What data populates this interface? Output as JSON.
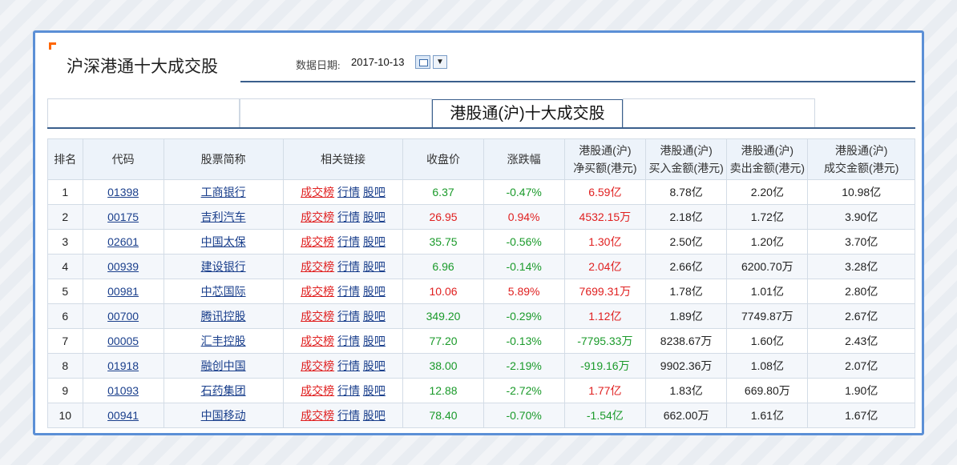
{
  "panel": {
    "title": "沪深港通十大成交股",
    "date_label": "数据日期:",
    "date_value": "2017-10-13"
  },
  "tabs": {
    "active_label": "港股通(沪)十大成交股"
  },
  "table": {
    "headers": [
      "排名",
      "代码",
      "股票简称",
      "相关链接",
      "收盘价",
      "涨跌幅",
      "港股通(沪) 净买额(港元)",
      "港股通(沪) 买入金额(港元)",
      "港股通(沪) 卖出金额(港元)",
      "港股通(沪) 成交金额(港元)"
    ],
    "link_labels": [
      "成交榜",
      "行情",
      "股吧"
    ],
    "rows": [
      {
        "rank": "1",
        "code": "01398",
        "name": "工商银行",
        "close": "6.37",
        "change": "-0.47%",
        "net": "6.59亿",
        "buy": "8.78亿",
        "sell": "2.20亿",
        "total": "10.98亿",
        "close_color": "green",
        "change_color": "green",
        "net_color": "red"
      },
      {
        "rank": "2",
        "code": "00175",
        "name": "吉利汽车",
        "close": "26.95",
        "change": "0.94%",
        "net": "4532.15万",
        "buy": "2.18亿",
        "sell": "1.72亿",
        "total": "3.90亿",
        "close_color": "red",
        "change_color": "red",
        "net_color": "red"
      },
      {
        "rank": "3",
        "code": "02601",
        "name": "中国太保",
        "close": "35.75",
        "change": "-0.56%",
        "net": "1.30亿",
        "buy": "2.50亿",
        "sell": "1.20亿",
        "total": "3.70亿",
        "close_color": "green",
        "change_color": "green",
        "net_color": "red"
      },
      {
        "rank": "4",
        "code": "00939",
        "name": "建设银行",
        "close": "6.96",
        "change": "-0.14%",
        "net": "2.04亿",
        "buy": "2.66亿",
        "sell": "6200.70万",
        "total": "3.28亿",
        "close_color": "green",
        "change_color": "green",
        "net_color": "red"
      },
      {
        "rank": "5",
        "code": "00981",
        "name": "中芯国际",
        "close": "10.06",
        "change": "5.89%",
        "net": "7699.31万",
        "buy": "1.78亿",
        "sell": "1.01亿",
        "total": "2.80亿",
        "close_color": "red",
        "change_color": "red",
        "net_color": "red"
      },
      {
        "rank": "6",
        "code": "00700",
        "name": "腾讯控股",
        "close": "349.20",
        "change": "-0.29%",
        "net": "1.12亿",
        "buy": "1.89亿",
        "sell": "7749.87万",
        "total": "2.67亿",
        "close_color": "green",
        "change_color": "green",
        "net_color": "red"
      },
      {
        "rank": "7",
        "code": "00005",
        "name": "汇丰控股",
        "close": "77.20",
        "change": "-0.13%",
        "net": "-7795.33万",
        "buy": "8238.67万",
        "sell": "1.60亿",
        "total": "2.43亿",
        "close_color": "green",
        "change_color": "green",
        "net_color": "green"
      },
      {
        "rank": "8",
        "code": "01918",
        "name": "融创中国",
        "close": "38.00",
        "change": "-2.19%",
        "net": "-919.16万",
        "buy": "9902.36万",
        "sell": "1.08亿",
        "total": "2.07亿",
        "close_color": "green",
        "change_color": "green",
        "net_color": "green"
      },
      {
        "rank": "9",
        "code": "01093",
        "name": "石药集团",
        "close": "12.88",
        "change": "-2.72%",
        "net": "1.77亿",
        "buy": "1.83亿",
        "sell": "669.80万",
        "total": "1.90亿",
        "close_color": "green",
        "change_color": "green",
        "net_color": "red"
      },
      {
        "rank": "10",
        "code": "00941",
        "name": "中国移动",
        "close": "78.40",
        "change": "-0.70%",
        "net": "-1.54亿",
        "buy": "662.00万",
        "sell": "1.61亿",
        "total": "1.67亿",
        "close_color": "green",
        "change_color": "green",
        "net_color": "green"
      }
    ]
  },
  "colors": {
    "up": "#e02020",
    "down": "#1a9a2a",
    "border": "#5b8fd6",
    "accent": "#ff6600"
  }
}
